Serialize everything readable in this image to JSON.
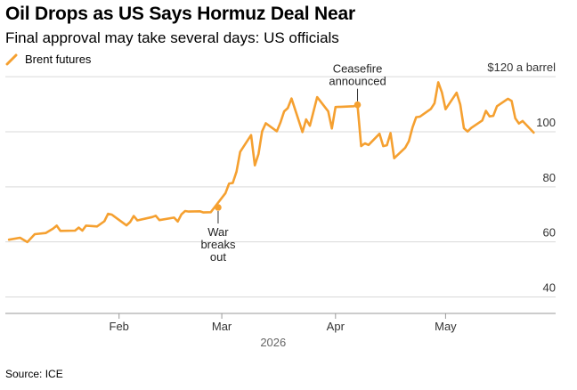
{
  "title": "Oil Drops as US Says Hormuz Deal Near",
  "subtitle": "Final approval may take several days: US officials",
  "source": "Source: ICE",
  "colors": {
    "series": "#f5a030",
    "grid": "#d9d9d9",
    "axis": "#666666"
  },
  "legend_icon": "orange-line-icon",
  "chart_data": {
    "type": "line",
    "title": "Oil Drops as US Says Hormuz Deal Near",
    "subtitle": "Final approval may take several days: US officials",
    "xlabel": "2026",
    "ylabel": "",
    "y_unit_label": "$120 a barrel",
    "ylim": [
      34,
      122
    ],
    "y_ticks": [
      40,
      60,
      80,
      100
    ],
    "x_range": [
      "2026-01-01",
      "2026-05-31"
    ],
    "x_ticks": [
      {
        "date": "2026-02-01",
        "label": "Feb"
      },
      {
        "date": "2026-03-01",
        "label": "Mar"
      },
      {
        "date": "2026-04-01",
        "label": "Apr"
      },
      {
        "date": "2026-05-01",
        "label": "May"
      }
    ],
    "grid": true,
    "legend_position": "top-left",
    "series": [
      {
        "name": "Brent futures",
        "color": "#f5a030",
        "points": [
          [
            "2026-01-02",
            60.8
          ],
          [
            "2026-01-05",
            61.5
          ],
          [
            "2026-01-07",
            59.9
          ],
          [
            "2026-01-09",
            62.8
          ],
          [
            "2026-01-12",
            63.2
          ],
          [
            "2026-01-14",
            64.8
          ],
          [
            "2026-01-15",
            65.9
          ],
          [
            "2026-01-16",
            64.0
          ],
          [
            "2026-01-20",
            64.1
          ],
          [
            "2026-01-21",
            65.2
          ],
          [
            "2026-01-22",
            64.1
          ],
          [
            "2026-01-23",
            65.9
          ],
          [
            "2026-01-26",
            65.6
          ],
          [
            "2026-01-28",
            67.5
          ],
          [
            "2026-01-29",
            70.2
          ],
          [
            "2026-01-30",
            69.9
          ],
          [
            "2026-02-03",
            66.0
          ],
          [
            "2026-02-04",
            67.2
          ],
          [
            "2026-02-05",
            69.4
          ],
          [
            "2026-02-06",
            67.8
          ],
          [
            "2026-02-10",
            69.0
          ],
          [
            "2026-02-11",
            69.5
          ],
          [
            "2026-02-12",
            67.9
          ],
          [
            "2026-02-16",
            68.8
          ],
          [
            "2026-02-17",
            67.4
          ],
          [
            "2026-02-18",
            70.0
          ],
          [
            "2026-02-19",
            71.2
          ],
          [
            "2026-02-20",
            71.0
          ],
          [
            "2026-02-23",
            71.1
          ],
          [
            "2026-02-24",
            70.7
          ],
          [
            "2026-02-26",
            70.8
          ],
          [
            "2026-02-27",
            72.5
          ],
          [
            "2026-03-02",
            77.7
          ],
          [
            "2026-03-03",
            81.2
          ],
          [
            "2026-03-04",
            81.4
          ],
          [
            "2026-03-05",
            85.5
          ],
          [
            "2026-03-06",
            92.7
          ],
          [
            "2026-03-09",
            98.8
          ],
          [
            "2026-03-10",
            87.8
          ],
          [
            "2026-03-11",
            91.9
          ],
          [
            "2026-03-12",
            100.2
          ],
          [
            "2026-03-13",
            103.1
          ],
          [
            "2026-03-16",
            100.2
          ],
          [
            "2026-03-17",
            103.4
          ],
          [
            "2026-03-18",
            107.4
          ],
          [
            "2026-03-19",
            108.6
          ],
          [
            "2026-03-20",
            112.1
          ],
          [
            "2026-03-23",
            99.9
          ],
          [
            "2026-03-24",
            104.5
          ],
          [
            "2026-03-25",
            102.2
          ],
          [
            "2026-03-27",
            112.6
          ],
          [
            "2026-03-30",
            107.4
          ],
          [
            "2026-03-31",
            101.2
          ],
          [
            "2026-04-01",
            109.0
          ],
          [
            "2026-04-06",
            109.3
          ],
          [
            "2026-04-07",
            109.8
          ],
          [
            "2026-04-08",
            94.8
          ],
          [
            "2026-04-09",
            95.8
          ],
          [
            "2026-04-10",
            95.2
          ],
          [
            "2026-04-13",
            99.3
          ],
          [
            "2026-04-14",
            94.8
          ],
          [
            "2026-04-15",
            95.1
          ],
          [
            "2026-04-16",
            99.5
          ],
          [
            "2026-04-17",
            90.4
          ],
          [
            "2026-04-20",
            94.2
          ],
          [
            "2026-04-21",
            96.6
          ],
          [
            "2026-04-22",
            101.6
          ],
          [
            "2026-04-23",
            105.3
          ],
          [
            "2026-04-24",
            105.5
          ],
          [
            "2026-04-27",
            108.3
          ],
          [
            "2026-04-28",
            110.4
          ],
          [
            "2026-04-29",
            118.0
          ],
          [
            "2026-04-30",
            114.3
          ],
          [
            "2026-05-01",
            108.2
          ],
          [
            "2026-05-04",
            114.2
          ],
          [
            "2026-05-05",
            109.9
          ],
          [
            "2026-05-06",
            101.3
          ],
          [
            "2026-05-07",
            100.1
          ],
          [
            "2026-05-08",
            101.4
          ],
          [
            "2026-05-11",
            104.1
          ],
          [
            "2026-05-12",
            107.6
          ],
          [
            "2026-05-13",
            105.6
          ],
          [
            "2026-05-14",
            105.8
          ],
          [
            "2026-05-15",
            109.3
          ],
          [
            "2026-05-18",
            112.0
          ],
          [
            "2026-05-19",
            111.2
          ],
          [
            "2026-05-20",
            104.9
          ],
          [
            "2026-05-21",
            103.0
          ],
          [
            "2026-05-22",
            103.9
          ],
          [
            "2026-05-25",
            99.7
          ]
        ]
      }
    ],
    "annotations": [
      {
        "name": "war",
        "date": "2026-02-28",
        "value": 72.5,
        "lines": [
          "War",
          "breaks",
          "out"
        ],
        "position": "below"
      },
      {
        "name": "ceasefire",
        "date": "2026-04-07",
        "value": 109.8,
        "lines": [
          "Ceasefire",
          "announced"
        ],
        "position": "above"
      }
    ]
  }
}
